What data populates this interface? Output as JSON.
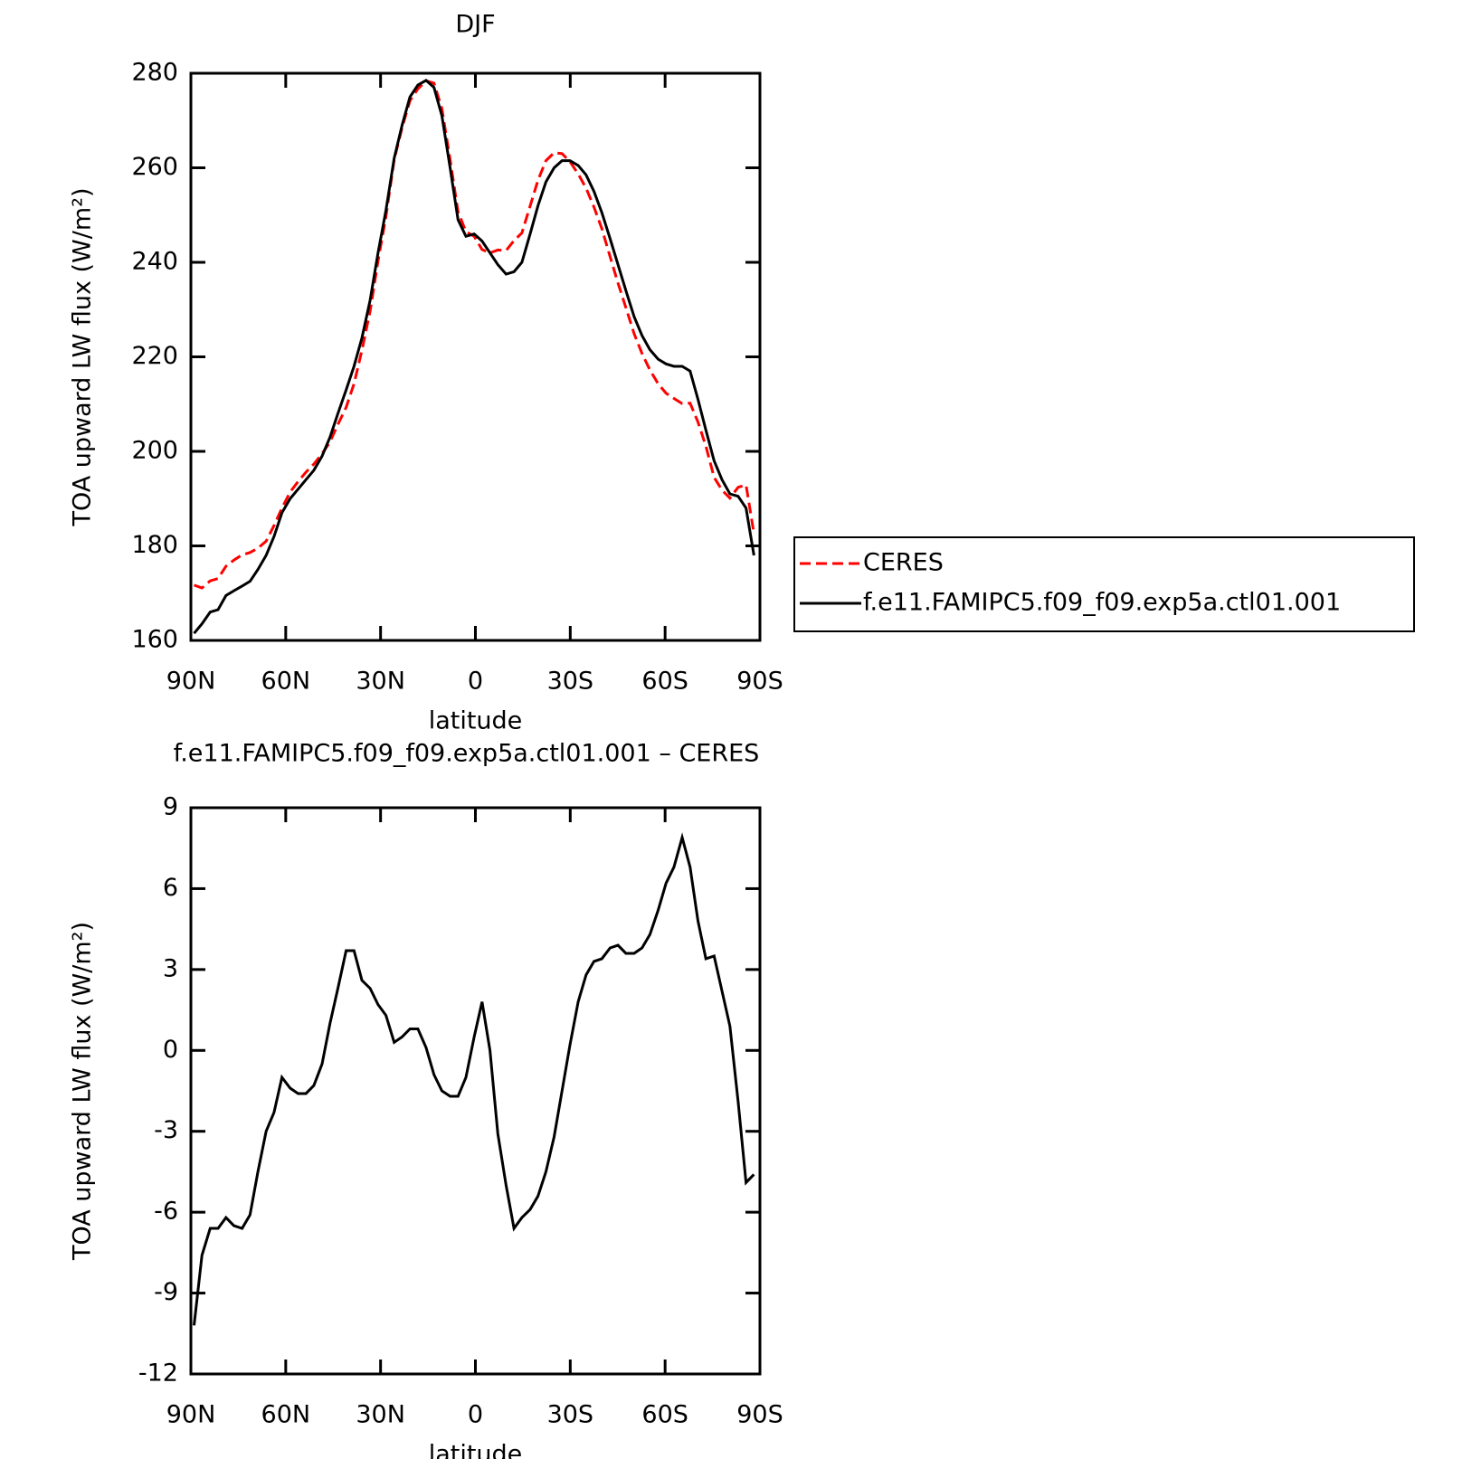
{
  "chart_data": [
    {
      "type": "line",
      "title": "DJF",
      "xlabel": "latitude",
      "ylabel": "TOA upward LW flux (W/m²)",
      "x": [
        89,
        86.5,
        83.9,
        81.4,
        78.9,
        76.4,
        73.8,
        71.3,
        68.8,
        66.2,
        63.7,
        61.2,
        58.6,
        56.1,
        53.6,
        51.1,
        48.5,
        46,
        43.5,
        40.9,
        38.4,
        35.9,
        33.3,
        30.8,
        28.3,
        25.7,
        23.2,
        20.7,
        18.2,
        15.6,
        13.1,
        10.6,
        8,
        5.5,
        3,
        0.4,
        -2.1,
        -4.6,
        -7.1,
        -9.7,
        -12.2,
        -14.7,
        -17.3,
        -19.8,
        -22.3,
        -24.9,
        -27.4,
        -29.9,
        -32.5,
        -35,
        -37.5,
        -40,
        -42.6,
        -45.1,
        -47.6,
        -50.2,
        -52.7,
        -55.2,
        -57.8,
        -60.3,
        -62.8,
        -65.4,
        -67.9,
        -70.4,
        -72.9,
        -75.5,
        -78,
        -80.5,
        -83.1,
        -85.6,
        -88.1
      ],
      "series": [
        {
          "name": "CERES",
          "color": "#ff0000",
          "line_style": "dashed",
          "values": [
            171.7,
            171.1,
            172.6,
            173.1,
            175.7,
            177,
            178.1,
            178.6,
            179.5,
            181,
            184.3,
            188,
            191.4,
            193.6,
            195.6,
            197.3,
            199.5,
            202,
            205.7,
            209.3,
            214.3,
            221.4,
            229.7,
            240.3,
            249.7,
            261.7,
            268.5,
            274.2,
            276.7,
            278.4,
            277.9,
            272.5,
            261.7,
            250.7,
            246.5,
            245.5,
            242.7,
            242,
            242.6,
            242.5,
            244.6,
            246.2,
            251.9,
            257.4,
            261.5,
            263.2,
            263,
            261.3,
            258.7,
            255.7,
            251.7,
            247.1,
            241.2,
            235.6,
            230.4,
            224.9,
            220.7,
            217.2,
            214.3,
            212.3,
            211.2,
            210.1,
            210.2,
            206.2,
            201.1,
            194.5,
            191.8,
            190.1,
            192.4,
            192.9,
            182.6
          ]
        },
        {
          "name": "f.e11.FAMIPC5.f09_f09.exp5a.ctl01.001",
          "color": "#000000",
          "line_style": "solid",
          "values": [
            161.5,
            163.5,
            166,
            166.5,
            169.5,
            170.5,
            171.5,
            172.5,
            175,
            178,
            182,
            187,
            190,
            192,
            194,
            196,
            199,
            203,
            208,
            213,
            218,
            224,
            232,
            242,
            251,
            262,
            269,
            275,
            277.5,
            278.5,
            277,
            271,
            260,
            249,
            245.5,
            246,
            244.5,
            242,
            239.5,
            237.5,
            238,
            240,
            246,
            252,
            257,
            260,
            261.5,
            261.5,
            260.5,
            258.5,
            255,
            250.5,
            245,
            239.5,
            234,
            228.5,
            224.5,
            221.5,
            219.5,
            218.5,
            218,
            218,
            217,
            211,
            204.5,
            198,
            194,
            191,
            190.5,
            188,
            178
          ]
        }
      ],
      "xlim": [
        90,
        -90
      ],
      "xticks": [
        {
          "value": 90,
          "label": "90N"
        },
        {
          "value": 60,
          "label": "60N"
        },
        {
          "value": 30,
          "label": "30N"
        },
        0,
        {
          "value": -30,
          "label": "30S"
        },
        {
          "value": -60,
          "label": "60S"
        },
        {
          "value": -90,
          "label": "90S"
        }
      ],
      "ylim": [
        160,
        280
      ],
      "yticks": [
        160,
        180,
        200,
        220,
        240,
        260,
        280
      ],
      "legend": "right"
    },
    {
      "type": "line",
      "title": "f.e11.FAMIPC5.f09_f09.exp5a.ctl01.001 – CERES",
      "xlabel": "latitude",
      "ylabel": "TOA upward LW flux (W/m²)",
      "x": [
        89,
        86.5,
        83.9,
        81.4,
        78.9,
        76.4,
        73.8,
        71.3,
        68.8,
        66.2,
        63.7,
        61.2,
        58.6,
        56.1,
        53.6,
        51.1,
        48.5,
        46,
        43.5,
        40.9,
        38.4,
        35.9,
        33.3,
        30.8,
        28.3,
        25.7,
        23.2,
        20.7,
        18.2,
        15.6,
        13.1,
        10.6,
        8,
        5.5,
        3,
        0.4,
        -2.1,
        -4.6,
        -7.1,
        -9.7,
        -12.2,
        -14.7,
        -17.3,
        -19.8,
        -22.3,
        -24.9,
        -27.4,
        -29.9,
        -32.5,
        -35,
        -37.5,
        -40,
        -42.6,
        -45.1,
        -47.6,
        -50.2,
        -52.7,
        -55.2,
        -57.8,
        -60.3,
        -62.8,
        -65.4,
        -67.9,
        -70.4,
        -72.9,
        -75.5,
        -78,
        -80.5,
        -83.1,
        -85.6,
        -88.1
      ],
      "values": [
        -10.2,
        -7.6,
        -6.6,
        -6.6,
        -6.2,
        -6.5,
        -6.6,
        -6.1,
        -4.5,
        -3,
        -2.3,
        -1,
        -1.4,
        -1.6,
        -1.6,
        -1.3,
        -0.5,
        1,
        2.3,
        3.7,
        3.7,
        2.6,
        2.3,
        1.7,
        1.3,
        0.3,
        0.5,
        0.8,
        0.8,
        0.1,
        -0.9,
        -1.5,
        -1.7,
        -1.7,
        -1,
        0.5,
        1.8,
        0,
        -3.1,
        -5,
        -6.6,
        -6.2,
        -5.9,
        -5.4,
        -4.5,
        -3.2,
        -1.5,
        0.2,
        1.8,
        2.8,
        3.3,
        3.4,
        3.8,
        3.9,
        3.6,
        3.6,
        3.8,
        4.3,
        5.2,
        6.2,
        6.8,
        7.9,
        6.8,
        4.8,
        3.4,
        3.5,
        2.2,
        0.9,
        -1.9,
        -4.9,
        -4.6
      ],
      "color": "#000000",
      "xlim": [
        90,
        -90
      ],
      "xticks": [
        {
          "value": 90,
          "label": "90N"
        },
        {
          "value": 60,
          "label": "60N"
        },
        {
          "value": 30,
          "label": "30N"
        },
        0,
        {
          "value": -30,
          "label": "30S"
        },
        {
          "value": -60,
          "label": "60S"
        },
        {
          "value": -90,
          "label": "90S"
        }
      ],
      "ylim": [
        -12,
        9
      ],
      "yticks": [
        -12,
        -9,
        -6,
        -3,
        0,
        3,
        6,
        9
      ]
    }
  ]
}
